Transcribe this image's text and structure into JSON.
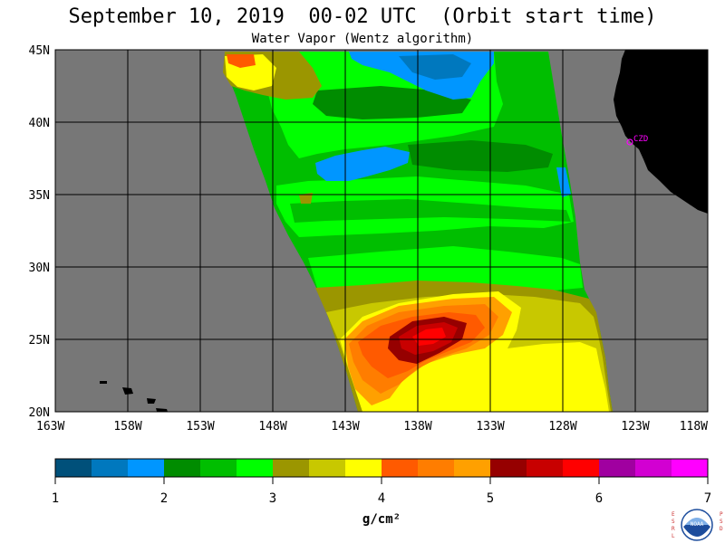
{
  "title": "September 10, 2019  00-02 UTC  (Orbit start time)",
  "subtitle": "Water Vapor (Wentz algorithm)",
  "map": {
    "lon_min": -163,
    "lon_max": -118,
    "lat_min": 20,
    "lat_max": 45,
    "lat_labels": [
      {
        "lat": 45,
        "label": "45N"
      },
      {
        "lat": 40,
        "label": "40N"
      },
      {
        "lat": 35,
        "label": "35N"
      },
      {
        "lat": 30,
        "label": "30N"
      },
      {
        "lat": 25,
        "label": "25N"
      },
      {
        "lat": 20,
        "label": "20N"
      }
    ],
    "lon_labels": [
      {
        "lon": -163,
        "label": "163W"
      },
      {
        "lon": -158,
        "label": "158W"
      },
      {
        "lon": -153,
        "label": "153W"
      },
      {
        "lon": -148,
        "label": "148W"
      },
      {
        "lon": -143,
        "label": "143W"
      },
      {
        "lon": -138,
        "label": "138W"
      },
      {
        "lon": -133,
        "label": "133W"
      },
      {
        "lon": -128,
        "label": "128W"
      },
      {
        "lon": -123,
        "label": "123W"
      },
      {
        "lon": -118,
        "label": "118W"
      }
    ],
    "station_label": "CZD",
    "colors": {
      "no_data": "#777777",
      "land": "#000000",
      "station": "#ff00ff",
      "grid": "#000000"
    }
  },
  "colorbar": {
    "colors": [
      "#00507a",
      "#0078be",
      "#0096ff",
      "#008c00",
      "#00be00",
      "#00ff00",
      "#9b9600",
      "#c8c800",
      "#ffff00",
      "#ff5a00",
      "#ff7d00",
      "#ffa000",
      "#960000",
      "#c80000",
      "#ff0000",
      "#a000a0",
      "#d200d2",
      "#ff00ff"
    ],
    "tick_labels": [
      "1",
      "2",
      "3",
      "4",
      "5",
      "6",
      "7"
    ],
    "units": "g/cm²"
  },
  "logo": {
    "left_letters": "ESRL",
    "right_letters": "PSD",
    "badge": "NOAA"
  }
}
